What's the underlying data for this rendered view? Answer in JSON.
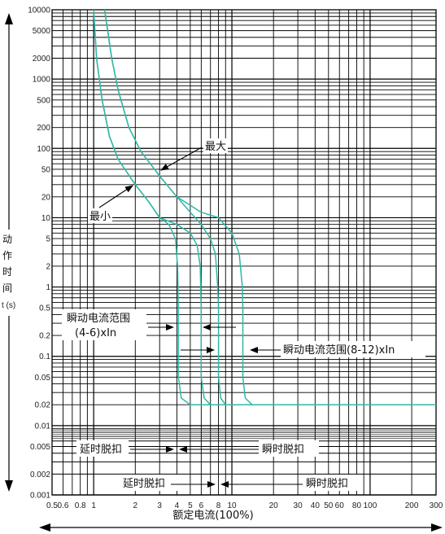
{
  "chart_data": {
    "type": "line",
    "x_scale": "log",
    "y_scale": "log",
    "xlim": [
      0.5,
      300
    ],
    "ylim": [
      0.001,
      10000
    ],
    "grid": true,
    "xlabel": "额定电流(100%)",
    "ylabel_chars": [
      "动",
      "作",
      "时",
      "间"
    ],
    "ylabel_unit": "t (s)",
    "x_tick_labels": [
      {
        "v": 0.5,
        "t": "0.5"
      },
      {
        "v": 0.6,
        "t": "0.6"
      },
      {
        "v": 0.8,
        "t": "0.8"
      },
      {
        "v": 1,
        "t": "1"
      },
      {
        "v": 2,
        "t": "2"
      },
      {
        "v": 3,
        "t": "3"
      },
      {
        "v": 4,
        "t": "4"
      },
      {
        "v": 5,
        "t": "5"
      },
      {
        "v": 6,
        "t": "6"
      },
      {
        "v": 8,
        "t": "8"
      },
      {
        "v": 10,
        "t": "10"
      },
      {
        "v": 20,
        "t": "20"
      },
      {
        "v": 30,
        "t": "30"
      },
      {
        "v": 40,
        "t": "40"
      },
      {
        "v": 50,
        "t": "50"
      },
      {
        "v": 60,
        "t": "60"
      },
      {
        "v": 80,
        "t": "80"
      },
      {
        "v": 100,
        "t": "100"
      },
      {
        "v": 200,
        "t": "200"
      },
      {
        "v": 300,
        "t": "300"
      }
    ],
    "y_tick_labels": [
      {
        "v": 10000,
        "t": "10000"
      },
      {
        "v": 5000,
        "t": "5000"
      },
      {
        "v": 2000,
        "t": "2000"
      },
      {
        "v": 1000,
        "t": "1000"
      },
      {
        "v": 500,
        "t": "500"
      },
      {
        "v": 200,
        "t": "200"
      },
      {
        "v": 100,
        "t": "100"
      },
      {
        "v": 50,
        "t": "50"
      },
      {
        "v": 20,
        "t": "20"
      },
      {
        "v": 10,
        "t": "10"
      },
      {
        "v": 5,
        "t": "5"
      },
      {
        "v": 2,
        "t": "2"
      },
      {
        "v": 1,
        "t": "1"
      },
      {
        "v": 0.5,
        "t": "0.5"
      },
      {
        "v": 0.2,
        "t": "0.2"
      },
      {
        "v": 0.1,
        "t": "0.1"
      },
      {
        "v": 0.05,
        "t": "0.05"
      },
      {
        "v": 0.02,
        "t": "0.02"
      },
      {
        "v": 0.01,
        "t": "0.01"
      },
      {
        "v": 0.005,
        "t": "0.005"
      },
      {
        "v": 0.002,
        "t": "0.002"
      },
      {
        "v": 0.001,
        "t": "0.001"
      }
    ],
    "series": [
      {
        "points": [
          [
            1.0,
            10000
          ],
          [
            1.05,
            2000
          ],
          [
            1.15,
            500
          ],
          [
            1.3,
            150
          ],
          [
            1.5,
            70
          ],
          [
            2.0,
            30
          ],
          [
            2.5,
            17
          ],
          [
            3.0,
            10
          ],
          [
            3.5,
            8
          ],
          [
            3.9,
            5
          ],
          [
            4.05,
            2
          ],
          [
            4.1,
            0.5
          ],
          [
            4.1,
            0.05
          ],
          [
            4.3,
            0.025
          ],
          [
            5,
            0.02
          ],
          [
            300,
            0.02
          ]
        ]
      },
      {
        "points": [
          [
            1.0,
            10000
          ],
          [
            1.05,
            2000
          ],
          [
            1.15,
            500
          ],
          [
            1.3,
            150
          ],
          [
            1.5,
            70
          ],
          [
            2.0,
            30
          ],
          [
            2.5,
            17
          ],
          [
            3.0,
            10
          ],
          [
            4.0,
            8
          ],
          [
            5.0,
            6
          ],
          [
            5.6,
            4
          ],
          [
            5.9,
            2
          ],
          [
            6.0,
            0.5
          ],
          [
            6.0,
            0.05
          ],
          [
            6.3,
            0.025
          ],
          [
            7,
            0.02
          ],
          [
            300,
            0.02
          ]
        ]
      },
      {
        "points": [
          [
            1.2,
            10000
          ],
          [
            1.35,
            2000
          ],
          [
            1.5,
            700
          ],
          [
            1.8,
            200
          ],
          [
            2.2,
            90
          ],
          [
            3.0,
            40
          ],
          [
            4.0,
            20
          ],
          [
            5.0,
            12
          ],
          [
            6.0,
            8
          ],
          [
            7.0,
            5
          ],
          [
            7.6,
            3
          ],
          [
            7.9,
            1
          ],
          [
            8.0,
            0.5
          ],
          [
            8.0,
            0.05
          ],
          [
            8.3,
            0.025
          ],
          [
            9,
            0.02
          ],
          [
            300,
            0.02
          ]
        ]
      },
      {
        "points": [
          [
            1.2,
            10000
          ],
          [
            1.35,
            2000
          ],
          [
            1.5,
            700
          ],
          [
            1.8,
            200
          ],
          [
            2.2,
            90
          ],
          [
            3.0,
            40
          ],
          [
            4.0,
            20
          ],
          [
            6.0,
            12
          ],
          [
            8.0,
            10
          ],
          [
            10.0,
            6
          ],
          [
            11.3,
            3
          ],
          [
            11.9,
            1
          ],
          [
            12.0,
            0.5
          ],
          [
            12.0,
            0.05
          ],
          [
            12.5,
            0.025
          ],
          [
            14,
            0.02
          ],
          [
            300,
            0.02
          ]
        ]
      }
    ],
    "series_color": "#2fb8a6",
    "annotations": {
      "max_label": "最大",
      "min_label": "最小",
      "instant_range_left_line1": "瞬动电流范围",
      "instant_range_left_line2": "(4-6)xIn",
      "instant_range_right": "瞬动电流范围(8-12)xIn",
      "delay_trip_1": "延时脱扣",
      "instant_trip_1": "瞬时脱扣",
      "delay_trip_2": "延时脱扣",
      "instant_trip_2": "瞬时脱扣"
    }
  }
}
